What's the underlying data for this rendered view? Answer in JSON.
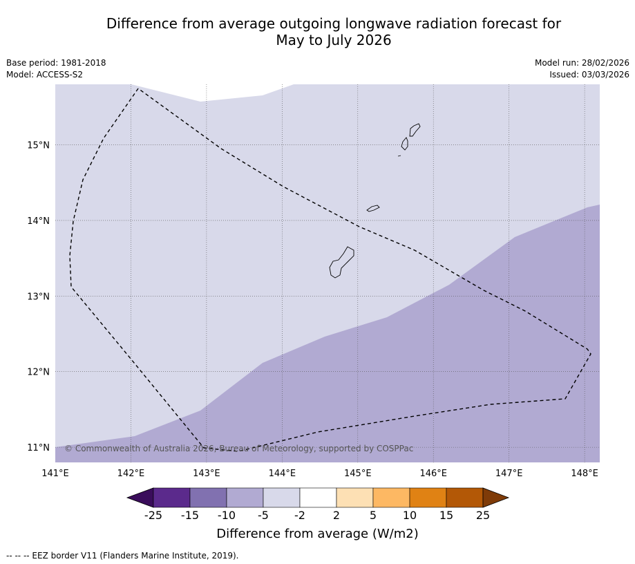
{
  "title": {
    "line1": "Difference from average outgoing longwave radiation forecast for",
    "line2": "May to July 2026"
  },
  "info_left": {
    "base_period": "Base period: 1981-2018",
    "model": "Model: ACCESS-S2"
  },
  "info_right": {
    "model_run": "Model run: 28/02/2026",
    "issued": "Issued: 03/03/2026"
  },
  "map": {
    "lon_range": [
      141.0,
      148.2
    ],
    "lat_range": [
      10.8,
      15.8
    ],
    "lon_ticks": [
      "141°E",
      "142°E",
      "143°E",
      "144°E",
      "145°E",
      "146°E",
      "147°E",
      "148°E"
    ],
    "lat_ticks": [
      "11°N",
      "12°N",
      "13°N",
      "14°N",
      "15°N"
    ],
    "copyright": "© Commonwealth of Australia 2026, Bureau of Meteorology, supported by COSPPac",
    "colors": {
      "minus5_to_minus2": "#d8d9ea",
      "minus10_to_minus5": "#b1aad2",
      "coast": "#000000",
      "eez": "#000000"
    }
  },
  "legend": {
    "ticks": [
      "-25",
      "-15",
      "-10",
      "-5",
      "-2",
      "2",
      "5",
      "10",
      "15",
      "25"
    ],
    "colors": [
      "#3a0d5b",
      "#5b2a8c",
      "#8171b0",
      "#b1aad2",
      "#d8d9ea",
      "#ffffff",
      "#fde0b4",
      "#fdb863",
      "#e08214",
      "#b35806",
      "#7f3b08"
    ],
    "label": "Difference from average (W/m2)"
  },
  "footer": "--  --  -- EEZ border V11 (Flanders Marine Institute, 2019)."
}
